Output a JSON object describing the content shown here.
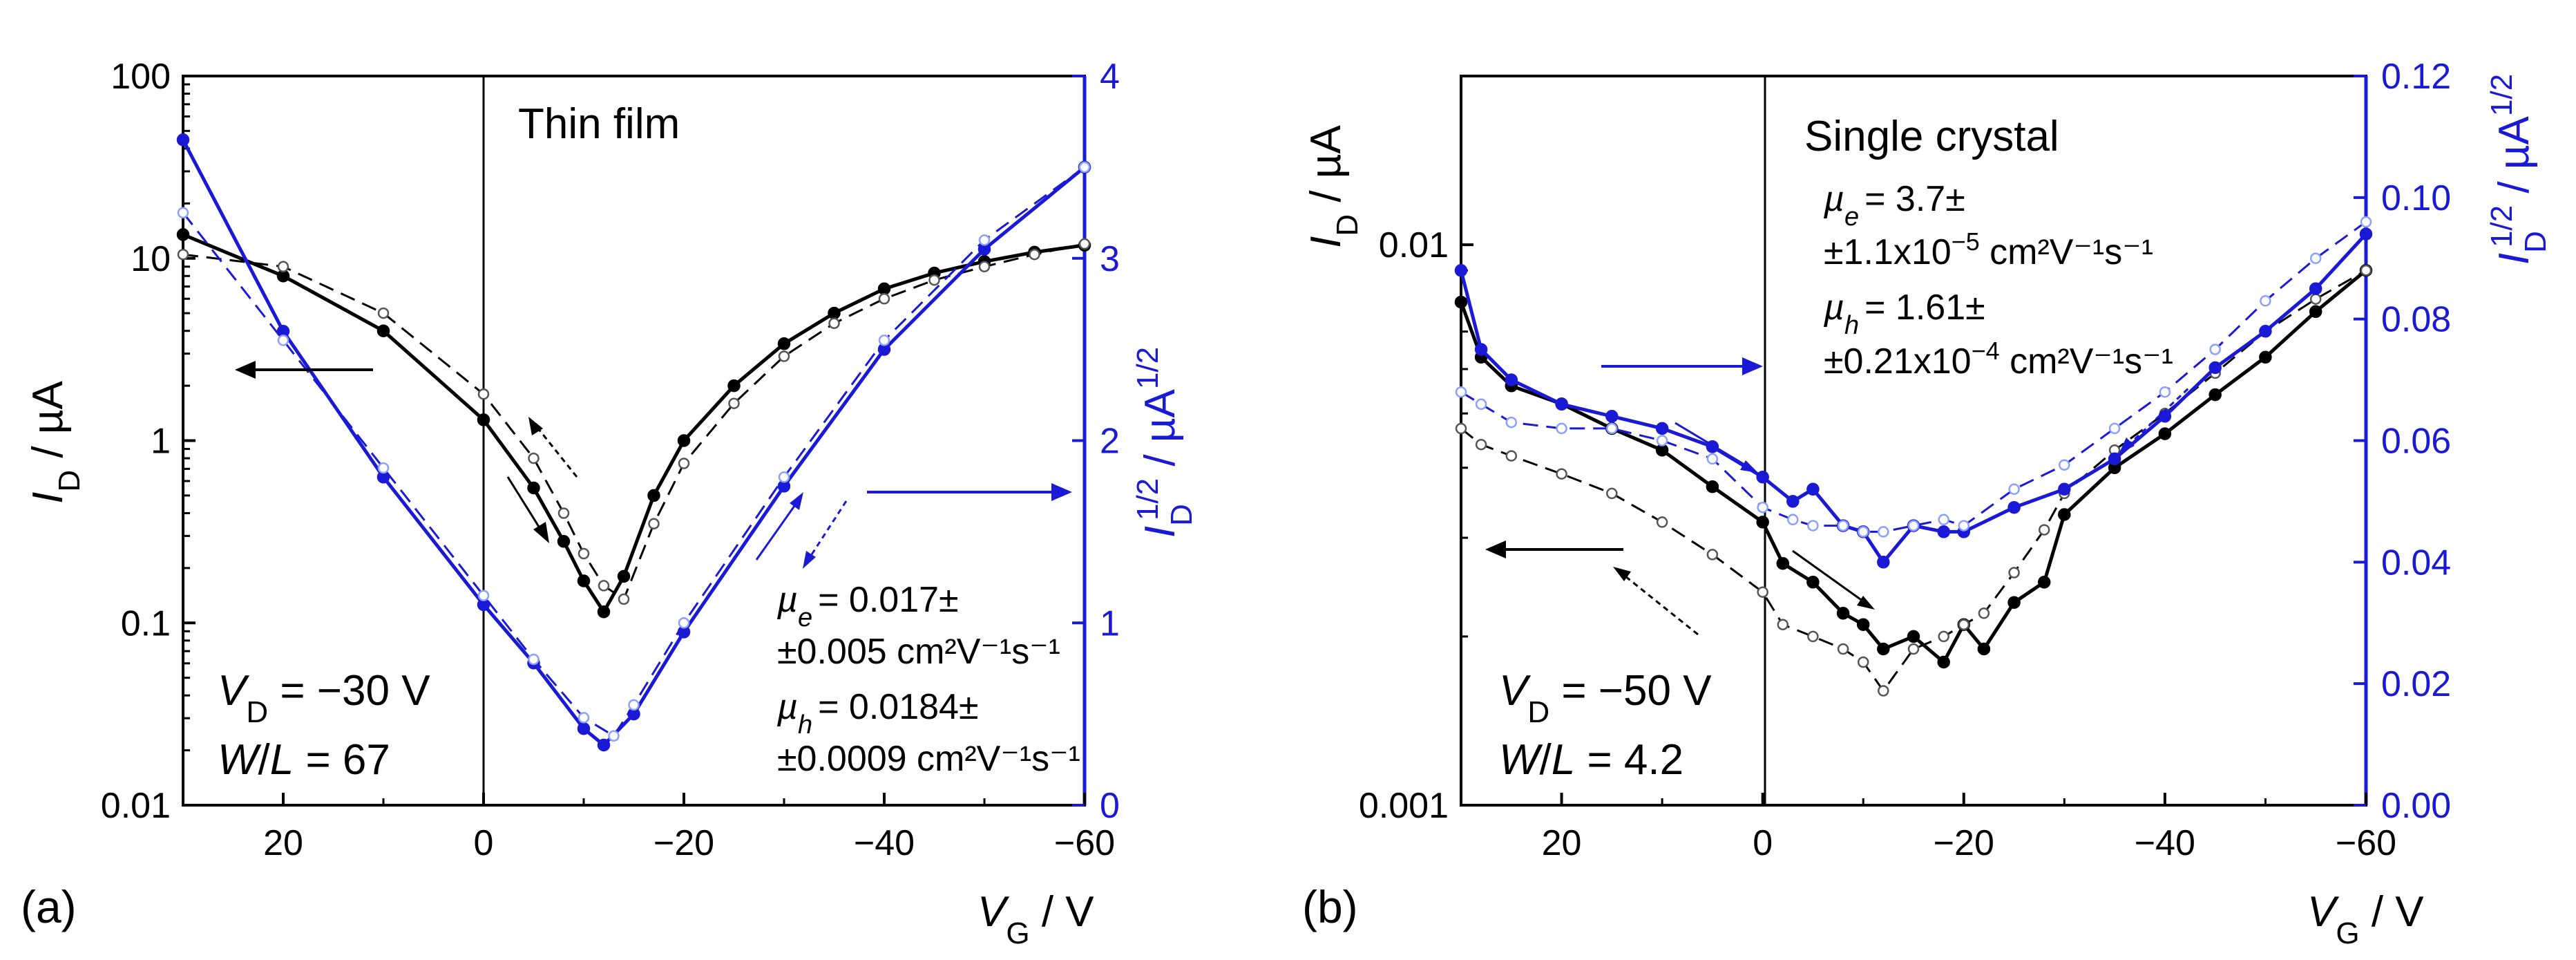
{
  "colors": {
    "black": "#000000",
    "blue": "#1a1ad6",
    "open_blue": "#8aa0ff"
  },
  "chart_data": [
    {
      "type": "line",
      "panel_label": "(a)",
      "title": "Thin film",
      "xlabel": {
        "main": "V",
        "sub": "G",
        "unit": " / V"
      },
      "ylabel_left": {
        "main": "I",
        "sub": "D",
        "unit": " / µA",
        "scale": "log",
        "ylim": [
          0.01,
          100
        ]
      },
      "ylabel_right": {
        "main": "I",
        "sub": "D",
        "sup": "1/2",
        "unit": " / µA",
        "unit_sup": "1/2",
        "ylim": [
          0,
          4
        ]
      },
      "xlim": [
        30,
        -60
      ],
      "xticks": [
        20,
        0,
        -20,
        -40,
        -60
      ],
      "xtick_labels": [
        "20",
        "0",
        "−20",
        "−40",
        "−60"
      ],
      "yticks_left": [
        0.01,
        0.1,
        1,
        10,
        100
      ],
      "ytick_labels_left": [
        "0.01",
        "0.1",
        "1",
        "10",
        "100"
      ],
      "yticks_right": [
        0,
        1,
        2,
        3,
        4
      ],
      "ytick_labels_right": [
        "0",
        "1",
        "2",
        "3",
        "4"
      ],
      "vline_x": 0,
      "series": [
        {
          "name": "ID forward",
          "axis": "left",
          "color": "black",
          "marker": "filled",
          "dashed": false,
          "x": [
            30,
            20,
            10,
            0,
            -5,
            -8,
            -10,
            -12,
            -14,
            -17,
            -20,
            -25,
            -30,
            -35,
            -40,
            -45,
            -50,
            -55,
            -60
          ],
          "y": [
            13.5,
            8.0,
            4.0,
            1.3,
            0.55,
            0.28,
            0.17,
            0.115,
            0.18,
            0.5,
            1.0,
            2.0,
            3.4,
            5.0,
            6.8,
            8.3,
            9.6,
            10.8,
            11.8
          ]
        },
        {
          "name": "ID reverse",
          "axis": "left",
          "color": "black",
          "marker": "open",
          "dashed": true,
          "x": [
            30,
            20,
            10,
            0,
            -5,
            -8,
            -10,
            -12,
            -14,
            -17,
            -20,
            -25,
            -30,
            -35,
            -40,
            -45,
            -50,
            -55,
            -60
          ],
          "y": [
            10.5,
            9.0,
            5.0,
            1.8,
            0.8,
            0.4,
            0.24,
            0.16,
            0.135,
            0.35,
            0.75,
            1.6,
            2.9,
            4.4,
            6.0,
            7.6,
            9.0,
            10.5,
            12.0
          ]
        },
        {
          "name": "sqrt ID forward",
          "axis": "right",
          "color": "blue",
          "marker": "filled",
          "dashed": false,
          "x": [
            30,
            20,
            10,
            0,
            -5,
            -10,
            -12,
            -15,
            -20,
            -30,
            -40,
            -50,
            -60
          ],
          "y": [
            3.65,
            2.6,
            1.8,
            1.1,
            0.78,
            0.42,
            0.33,
            0.5,
            0.95,
            1.75,
            2.5,
            3.05,
            3.5
          ]
        },
        {
          "name": "sqrt ID reverse",
          "axis": "right",
          "color": "blue",
          "marker": "open",
          "dashed": true,
          "x": [
            30,
            20,
            10,
            0,
            -5,
            -10,
            -13,
            -15,
            -20,
            -30,
            -40,
            -50,
            -60
          ],
          "y": [
            3.25,
            2.55,
            1.85,
            1.15,
            0.8,
            0.48,
            0.38,
            0.55,
            1.0,
            1.8,
            2.55,
            3.1,
            3.5
          ]
        }
      ],
      "annotations": {
        "mu_e_line1": "= 0.017±",
        "mu_e_line2": "±0.005 cm²V⁻¹s⁻¹",
        "mu_h_line1": "= 0.0184±",
        "mu_h_line2": "±0.0009 cm²V⁻¹s⁻¹",
        "vd_value": " = −30 V",
        "wl_value": " = 67"
      }
    },
    {
      "type": "line",
      "panel_label": "(b)",
      "title": "Single crystal",
      "xlabel": {
        "main": "V",
        "sub": "G",
        "unit": " / V"
      },
      "ylabel_left": {
        "main": "I",
        "sub": "D",
        "unit": " / µA",
        "scale": "log",
        "ylim": [
          0.001,
          0.02
        ]
      },
      "ylabel_right": {
        "main": "I",
        "sub": "D",
        "sup": "1/2",
        "unit": " / µA",
        "unit_sup": "1/2",
        "ylim": [
          0,
          0.12
        ]
      },
      "xlim": [
        30,
        -60
      ],
      "xticks": [
        20,
        0,
        -20,
        -40,
        -60
      ],
      "xtick_labels": [
        "20",
        "0",
        "−20",
        "−40",
        "−60"
      ],
      "yticks_left": [
        0.001,
        0.01
      ],
      "ytick_labels_left": [
        "0.001",
        "0.01"
      ],
      "yticks_right": [
        0,
        0.02,
        0.04,
        0.06,
        0.08,
        0.1,
        0.12
      ],
      "ytick_labels_right": [
        "0.00",
        "0.02",
        "0.04",
        "0.06",
        "0.08",
        "0.10",
        "0.12"
      ],
      "vline_x": 0,
      "series": [
        {
          "name": "ID forward",
          "axis": "left",
          "color": "black",
          "marker": "filled",
          "dashed": false,
          "x": [
            30,
            28,
            25,
            20,
            15,
            10,
            5,
            0,
            -2,
            -5,
            -8,
            -10,
            -12,
            -15,
            -18,
            -20,
            -22,
            -25,
            -28,
            -30,
            -35,
            -40,
            -45,
            -50,
            -55,
            -60
          ],
          "y": [
            0.0079,
            0.0063,
            0.0056,
            0.0052,
            0.0047,
            0.0043,
            0.0037,
            0.0032,
            0.0027,
            0.0025,
            0.0022,
            0.0021,
            0.0019,
            0.002,
            0.0018,
            0.0021,
            0.0019,
            0.0023,
            0.0025,
            0.0033,
            0.004,
            0.0046,
            0.0054,
            0.0063,
            0.0076,
            0.009
          ]
        },
        {
          "name": "ID reverse",
          "axis": "left",
          "color": "black",
          "marker": "open",
          "dashed": true,
          "x": [
            30,
            28,
            25,
            20,
            15,
            10,
            5,
            0,
            -2,
            -5,
            -8,
            -10,
            -12,
            -15,
            -18,
            -20,
            -22,
            -25,
            -28,
            -30,
            -35,
            -40,
            -45,
            -50,
            -55,
            -60
          ],
          "y": [
            0.0047,
            0.0044,
            0.0042,
            0.0039,
            0.0036,
            0.0032,
            0.0028,
            0.0024,
            0.0021,
            0.002,
            0.0019,
            0.0018,
            0.0016,
            0.0019,
            0.002,
            0.0021,
            0.0022,
            0.0026,
            0.0031,
            0.0036,
            0.0043,
            0.005,
            0.0059,
            0.007,
            0.008,
            0.009
          ]
        },
        {
          "name": "sqrt ID forward",
          "axis": "right",
          "color": "blue",
          "marker": "filled",
          "dashed": false,
          "x": [
            30,
            28,
            25,
            20,
            15,
            10,
            5,
            0,
            -3,
            -5,
            -8,
            -10,
            -12,
            -15,
            -18,
            -20,
            -25,
            -30,
            -35,
            -40,
            -45,
            -50,
            -55,
            -60
          ],
          "y": [
            0.088,
            0.075,
            0.07,
            0.066,
            0.064,
            0.062,
            0.059,
            0.054,
            0.05,
            0.052,
            0.046,
            0.045,
            0.04,
            0.046,
            0.045,
            0.045,
            0.049,
            0.052,
            0.057,
            0.064,
            0.072,
            0.078,
            0.085,
            0.094
          ]
        },
        {
          "name": "sqrt ID reverse",
          "axis": "right",
          "color": "blue",
          "marker": "open",
          "dashed": true,
          "x": [
            30,
            28,
            25,
            20,
            15,
            10,
            5,
            0,
            -3,
            -5,
            -8,
            -10,
            -12,
            -15,
            -18,
            -20,
            -25,
            -30,
            -35,
            -40,
            -45,
            -50,
            -55,
            -60
          ],
          "y": [
            0.068,
            0.066,
            0.063,
            0.062,
            0.062,
            0.06,
            0.057,
            0.049,
            0.047,
            0.046,
            0.046,
            0.045,
            0.045,
            0.046,
            0.047,
            0.046,
            0.052,
            0.056,
            0.062,
            0.068,
            0.075,
            0.083,
            0.09,
            0.096
          ]
        }
      ],
      "annotations": {
        "mu_e_line1": "= 3.7±",
        "mu_e_line2_a": "±1.1x10",
        "mu_e_line2_exp": "−5",
        "mu_e_line2_b": " cm²V⁻¹s⁻¹",
        "mu_h_line1": "= 1.61±",
        "mu_h_line2_a": "±0.21x10",
        "mu_h_line2_exp": "−4",
        "mu_h_line2_b": " cm²V⁻¹s⁻¹",
        "vd_value": " = −50 V",
        "wl_value": " = 4.2"
      }
    }
  ],
  "symbols": {
    "mu": "µ",
    "e": "e",
    "h": "h",
    "V": "V",
    "D": "D",
    "W": "W",
    "slash": "/",
    "L": "L"
  }
}
